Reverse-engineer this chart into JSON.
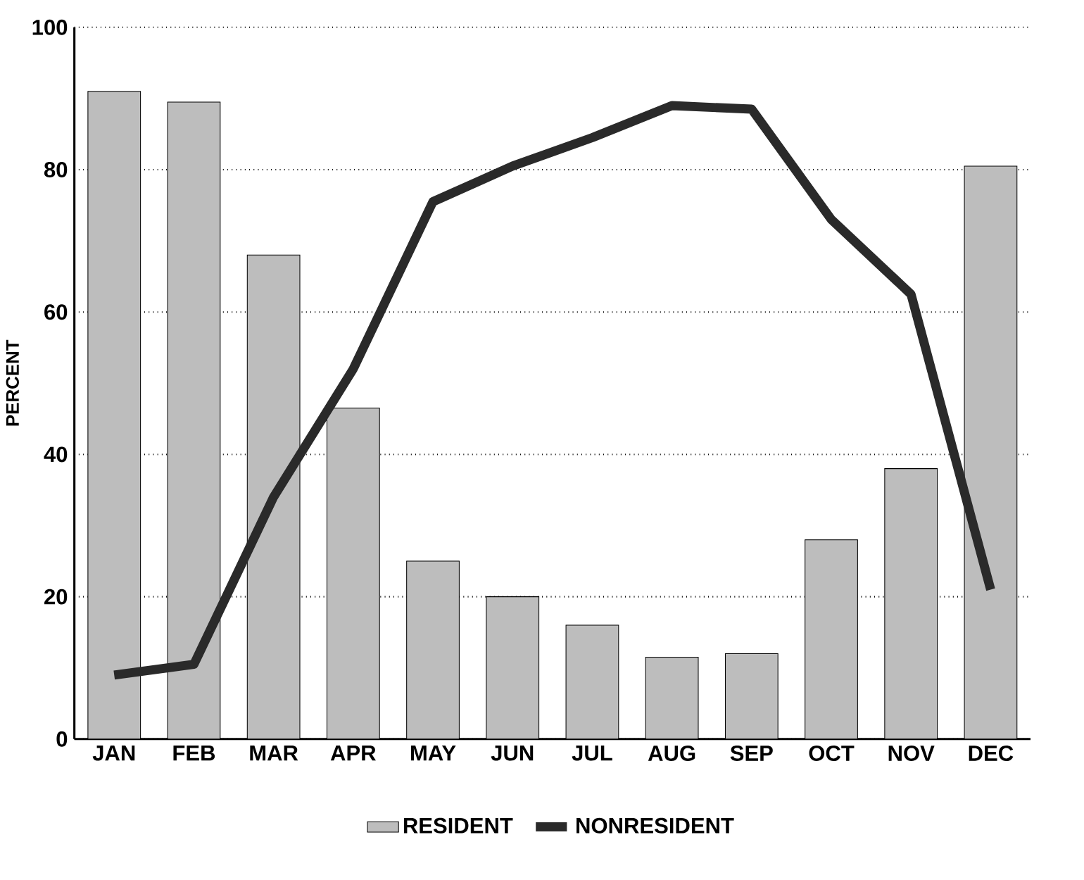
{
  "chart_data": {
    "type": "bar",
    "ylabel": "PERCENT",
    "categories": [
      "JAN",
      "FEB",
      "MAR",
      "APR",
      "MAY",
      "JUN",
      "JUL",
      "AUG",
      "SEP",
      "OCT",
      "NOV",
      "DEC"
    ],
    "series": [
      {
        "name": "RESIDENT",
        "color": "#bdbdbd",
        "values": [
          91,
          89.5,
          68,
          46.5,
          25,
          20,
          16,
          11.5,
          12,
          28,
          38,
          80.5
        ]
      },
      {
        "name": "NONRESIDENT",
        "type": "line",
        "color": "#2a2a2a",
        "values": [
          9,
          10.5,
          34,
          52,
          75.5,
          80.5,
          84.5,
          89,
          88.5,
          73,
          62.5,
          21
        ]
      }
    ],
    "ylim": [
      0,
      100
    ],
    "yticks": [
      0,
      20,
      40,
      60,
      80,
      100
    ],
    "grid": "y",
    "legend": "bottom",
    "marker": "none"
  }
}
